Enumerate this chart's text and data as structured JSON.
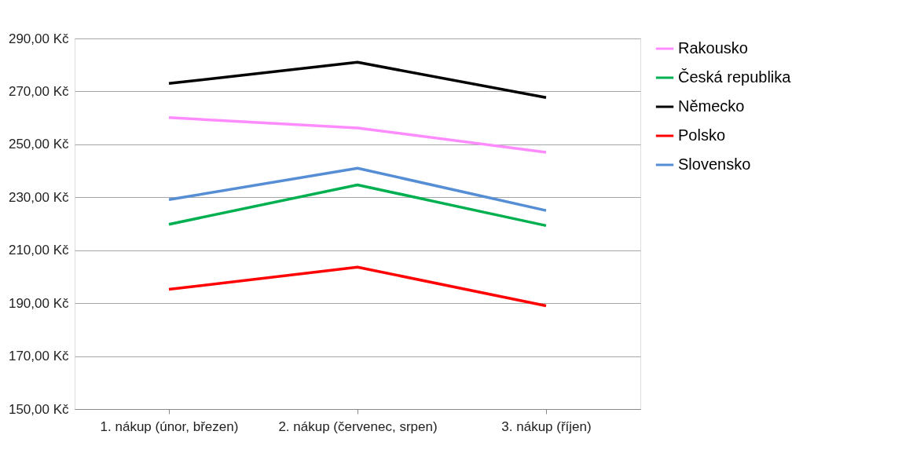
{
  "chart_data": {
    "type": "line",
    "categories": [
      "1. nákup (únor, březen)",
      "2. nákup (červenec, srpen)",
      "3. nákup (říjen)"
    ],
    "series": [
      {
        "name": "Rakousko",
        "color": "#ff8cff",
        "values": [
          260.1,
          256.2,
          247.0
        ]
      },
      {
        "name": "Česká republika",
        "color": "#00b050",
        "values": [
          219.8,
          234.7,
          219.3
        ]
      },
      {
        "name": "Německo",
        "color": "#000000",
        "values": [
          273.0,
          281.0,
          267.7
        ]
      },
      {
        "name": "Polsko",
        "color": "#ff0000",
        "values": [
          195.2,
          203.6,
          189.0
        ]
      },
      {
        "name": "Slovensko",
        "color": "#558ed5",
        "values": [
          229.1,
          241.0,
          225.0
        ]
      }
    ],
    "ylim": [
      150,
      290
    ],
    "yticks": [
      {
        "value": 150,
        "label": "150,00 Kč"
      },
      {
        "value": 170,
        "label": "170,00 Kč"
      },
      {
        "value": 190,
        "label": "190,00 Kč"
      },
      {
        "value": 210,
        "label": "210,00 Kč"
      },
      {
        "value": 230,
        "label": "230,00 Kč"
      },
      {
        "value": 250,
        "label": "250,00 Kč"
      },
      {
        "value": 270,
        "label": "270,00 Kč"
      },
      {
        "value": 290,
        "label": "290,00 Kč"
      }
    ],
    "grid": "y",
    "legend": "right",
    "marker": "none",
    "line_style": "solid"
  }
}
